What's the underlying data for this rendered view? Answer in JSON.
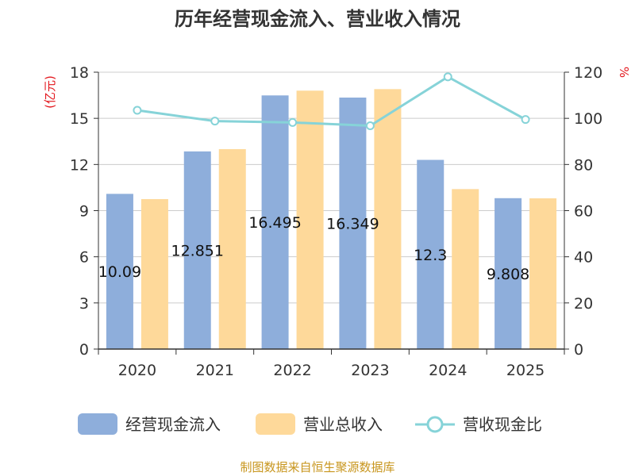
{
  "chart_data": {
    "type": "bar",
    "title": "历年经营现金流入、营业收入情况",
    "categories": [
      "2020",
      "2021",
      "2022",
      "2023",
      "2024",
      "2025"
    ],
    "series": [
      {
        "name": "经营现金流入",
        "axis": "left",
        "color": "#8eaedb",
        "values": [
          10.09,
          12.85,
          16.49,
          16.35,
          12.3,
          9.81
        ]
      },
      {
        "name": "营业总收入",
        "axis": "left",
        "color": "#fed99a",
        "values": [
          9.75,
          13.0,
          16.8,
          16.9,
          10.4,
          9.8
        ]
      },
      {
        "name": "营收现金比",
        "axis": "right",
        "type": "line",
        "color": "#86d3d8",
        "values": [
          103.5,
          98.8,
          98.2,
          96.8,
          118,
          99.5
        ]
      }
    ],
    "data_labels": [
      "10.09",
      "12.851",
      "16.495",
      "16.349",
      "12.3",
      "9.808"
    ],
    "y_left": {
      "label": "(亿元)",
      "min": 0,
      "max": 18,
      "ticks": [
        "0",
        "3",
        "6",
        "9",
        "12",
        "15",
        "18"
      ]
    },
    "y_right": {
      "label": "%",
      "min": 0,
      "max": 120,
      "ticks": [
        "0",
        "20",
        "40",
        "60",
        "80",
        "100",
        "120"
      ]
    },
    "grid": true,
    "legend": "bottom"
  },
  "source": "制图数据来自恒生聚源数据库"
}
